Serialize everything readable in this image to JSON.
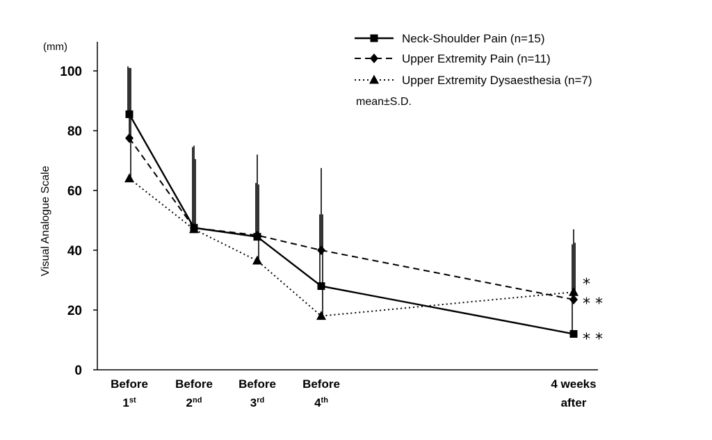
{
  "chart_data": {
    "type": "line",
    "title": "",
    "xlabel": "",
    "ylabel": "Visual Analogue Scale",
    "unit": "(mm)",
    "ylim": [
      0,
      100
    ],
    "yticks": [
      "0",
      "20",
      "40",
      "60",
      "80",
      "100"
    ],
    "grid": false,
    "legend_position": "top-right",
    "categories": [
      {
        "main": "Before",
        "num": "1",
        "sup": "st"
      },
      {
        "main": "Before",
        "num": "2",
        "sup": "nd"
      },
      {
        "main": "Before",
        "num": "3",
        "sup": "rd"
      },
      {
        "main": "Before",
        "num": "4",
        "sup": "th"
      },
      {
        "main": "4 weeks",
        "num": "after",
        "sup": ""
      }
    ],
    "series": [
      {
        "name": "Neck-Shoulder Pain (n=15)",
        "marker": "square",
        "line_style": "solid",
        "values": [
          85.5,
          47.5,
          44.5,
          28,
          12
        ],
        "sd": [
          16,
          27,
          18,
          24,
          30
        ]
      },
      {
        "name": "Upper Extremity Pain (n=11)",
        "marker": "diamond",
        "line_style": "dashed",
        "values": [
          77.5,
          47.5,
          45,
          40,
          23.5
        ],
        "sd": [
          23.5,
          27.5,
          27,
          27.5,
          23.5
        ]
      },
      {
        "name": "Upper Extremity Dysaesthesia (n=7)",
        "marker": "triangle",
        "line_style": "dotted",
        "values": [
          64,
          47,
          36.5,
          18,
          26
        ],
        "sd": [
          37,
          23.5,
          25.5,
          34,
          16.5
        ]
      }
    ],
    "note": "mean±S.D.",
    "significance": [
      "*",
      "**",
      "**"
    ]
  }
}
